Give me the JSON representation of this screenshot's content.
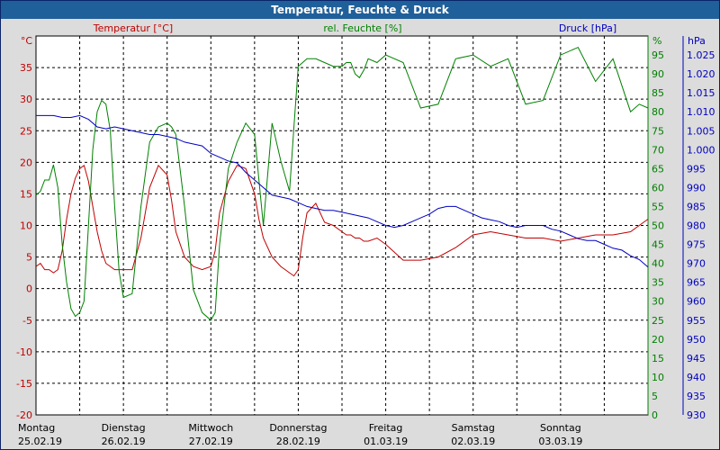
{
  "window": {
    "title": "Temperatur, Feuchte & Druck"
  },
  "chart_data": {
    "type": "line",
    "title": "Temperatur, Feuchte & Druck",
    "series_labels": {
      "temperature": "Temperatur [°C]",
      "humidity": "rel. Feuchte [%]",
      "pressure": "Druck [hPa]"
    },
    "axes": {
      "left": {
        "unit": "°C",
        "min": -20,
        "max": 40,
        "step": 5,
        "ticks": [
          "-20",
          "-15",
          "-10",
          "-5",
          "0",
          "5",
          "10",
          "15",
          "20",
          "25",
          "30",
          "35"
        ]
      },
      "right1": {
        "unit": "%",
        "min": 0,
        "max": 100,
        "step": 5,
        "ticks": [
          "0",
          "5",
          "10",
          "15",
          "20",
          "25",
          "30",
          "35",
          "40",
          "45",
          "50",
          "55",
          "60",
          "65",
          "70",
          "75",
          "80",
          "85",
          "90",
          "95"
        ]
      },
      "right2": {
        "unit": "hPa",
        "min": 930,
        "max": 1030,
        "step": 5,
        "ticks": [
          "930",
          "935",
          "940",
          "945",
          "950",
          "955",
          "960",
          "965",
          "970",
          "975",
          "980",
          "985",
          "990",
          "995",
          "1.000",
          "1.005",
          "1.010",
          "1.015",
          "1.020",
          "1.025"
        ]
      }
    },
    "x_axis": {
      "days": [
        {
          "weekday": "Montag",
          "date": "25.02.19"
        },
        {
          "weekday": "Dienstag",
          "date": "26.02.19"
        },
        {
          "weekday": "Mittwoch",
          "date": "27.02.19"
        },
        {
          "weekday": "Donnerstag",
          "date": "28.02.19"
        },
        {
          "weekday": "Freitag",
          "date": "01.03.19"
        },
        {
          "weekday": "Samstag",
          "date": "02.03.19"
        },
        {
          "weekday": "Sonntag",
          "date": "03.03.19"
        }
      ],
      "range_days": [
        0,
        7
      ],
      "grid_step_days": 0.5
    },
    "grid": true,
    "colors": {
      "temperature": "#c00000",
      "humidity": "#008000",
      "pressure": "#0000c0",
      "grid": "#000000",
      "plot_bg": "#ffffff"
    },
    "series": [
      {
        "name": "Temperatur [°C]",
        "axis": "left",
        "x": [
          0.0,
          0.05,
          0.1,
          0.15,
          0.2,
          0.25,
          0.3,
          0.35,
          0.4,
          0.45,
          0.5,
          0.55,
          0.6,
          0.65,
          0.7,
          0.75,
          0.8,
          0.85,
          0.9,
          0.95,
          1.0,
          1.1,
          1.2,
          1.3,
          1.4,
          1.5,
          1.55,
          1.6,
          1.7,
          1.8,
          1.9,
          2.0,
          2.05,
          2.1,
          2.2,
          2.3,
          2.4,
          2.5,
          2.55,
          2.6,
          2.7,
          2.8,
          2.9,
          2.95,
          3.0,
          3.05,
          3.1,
          3.2,
          3.3,
          3.4,
          3.5,
          3.55,
          3.6,
          3.65,
          3.7,
          3.75,
          3.8,
          3.9,
          4.0,
          4.2,
          4.4,
          4.6,
          4.8,
          5.0,
          5.2,
          5.4,
          5.6,
          5.8,
          6.0,
          6.2,
          6.4,
          6.6,
          6.8,
          6.9,
          7.0
        ],
        "y": [
          3.5,
          4,
          3,
          3,
          2.5,
          3,
          6,
          11,
          15,
          17.5,
          19,
          19.5,
          17,
          13,
          9,
          6,
          4,
          3.5,
          3,
          3,
          3,
          3,
          8,
          16,
          19.5,
          18,
          14,
          9,
          5,
          3.5,
          3,
          3.5,
          6,
          12,
          17,
          19.5,
          19,
          15,
          11,
          8,
          5,
          3.5,
          2.5,
          2,
          3,
          8,
          12,
          13.5,
          10.5,
          10,
          9,
          8.5,
          8.5,
          8,
          8,
          7.5,
          7.5,
          8,
          7,
          4.5,
          4.5,
          5,
          6.5,
          8.5,
          9,
          8.5,
          8,
          8,
          7.5,
          8,
          8.5,
          8.5,
          9,
          10,
          11
        ]
      },
      {
        "name": "rel. Feuchte [%]",
        "axis": "right1",
        "x": [
          0.0,
          0.05,
          0.1,
          0.15,
          0.2,
          0.25,
          0.3,
          0.35,
          0.4,
          0.45,
          0.5,
          0.55,
          0.6,
          0.65,
          0.7,
          0.75,
          0.8,
          0.85,
          0.9,
          0.95,
          1.0,
          1.1,
          1.2,
          1.3,
          1.4,
          1.5,
          1.55,
          1.6,
          1.7,
          1.8,
          1.9,
          2.0,
          2.05,
          2.1,
          2.2,
          2.3,
          2.4,
          2.5,
          2.55,
          2.6,
          2.7,
          2.8,
          2.9,
          2.95,
          3.0,
          3.05,
          3.1,
          3.2,
          3.3,
          3.4,
          3.5,
          3.55,
          3.6,
          3.65,
          3.7,
          3.75,
          3.8,
          3.9,
          4.0,
          4.2,
          4.4,
          4.6,
          4.8,
          5.0,
          5.2,
          5.4,
          5.6,
          5.8,
          6.0,
          6.2,
          6.4,
          6.6,
          6.8,
          6.9,
          7.0
        ],
        "y": [
          58,
          59,
          62,
          62,
          66,
          60,
          45,
          35,
          28,
          26,
          27,
          30,
          50,
          70,
          80,
          83,
          82,
          75,
          55,
          38,
          31,
          32,
          55,
          72,
          76,
          77,
          76,
          74,
          55,
          33,
          27,
          25,
          27,
          45,
          65,
          72,
          77,
          74,
          62,
          50,
          77,
          67,
          59,
          76,
          92,
          93,
          94,
          94,
          93,
          92,
          92,
          93,
          93,
          90,
          89,
          91,
          94,
          93,
          95,
          93,
          81,
          82,
          94,
          95,
          92,
          94,
          82,
          83,
          95,
          97,
          88,
          94,
          80,
          82,
          81
        ]
      },
      {
        "name": "Druck [hPa]",
        "axis": "right2",
        "x": [
          0.0,
          0.1,
          0.2,
          0.3,
          0.4,
          0.5,
          0.6,
          0.7,
          0.8,
          0.9,
          1.0,
          1.1,
          1.2,
          1.3,
          1.4,
          1.5,
          1.6,
          1.7,
          1.8,
          1.9,
          2.0,
          2.1,
          2.2,
          2.3,
          2.4,
          2.5,
          2.6,
          2.7,
          2.8,
          2.9,
          3.0,
          3.1,
          3.2,
          3.3,
          3.4,
          3.5,
          3.6,
          3.7,
          3.8,
          3.9,
          4.0,
          4.1,
          4.2,
          4.3,
          4.4,
          4.5,
          4.6,
          4.7,
          4.8,
          4.9,
          5.0,
          5.1,
          5.2,
          5.3,
          5.4,
          5.5,
          5.6,
          5.7,
          5.8,
          5.9,
          6.0,
          6.1,
          6.2,
          6.3,
          6.4,
          6.5,
          6.6,
          6.7,
          6.8,
          6.9,
          7.0
        ],
        "y": [
          1009,
          1009,
          1009,
          1008.5,
          1008.5,
          1009,
          1008,
          1006,
          1005.5,
          1006,
          1005.5,
          1005,
          1004.5,
          1004,
          1004,
          1003.5,
          1003,
          1002,
          1001.5,
          1001,
          999,
          998,
          997,
          996.5,
          994,
          992,
          990,
          988,
          987.5,
          987,
          986,
          985,
          984.5,
          984,
          984,
          983.5,
          983,
          982.5,
          982,
          981,
          980,
          979.5,
          980,
          981,
          982,
          983,
          984.5,
          985,
          985,
          984,
          983,
          982,
          981.5,
          981,
          980,
          979.5,
          980,
          980,
          980,
          979,
          978.5,
          977.5,
          976.5,
          976,
          976,
          975,
          974,
          973.5,
          972,
          971,
          969
        ]
      }
    ]
  }
}
